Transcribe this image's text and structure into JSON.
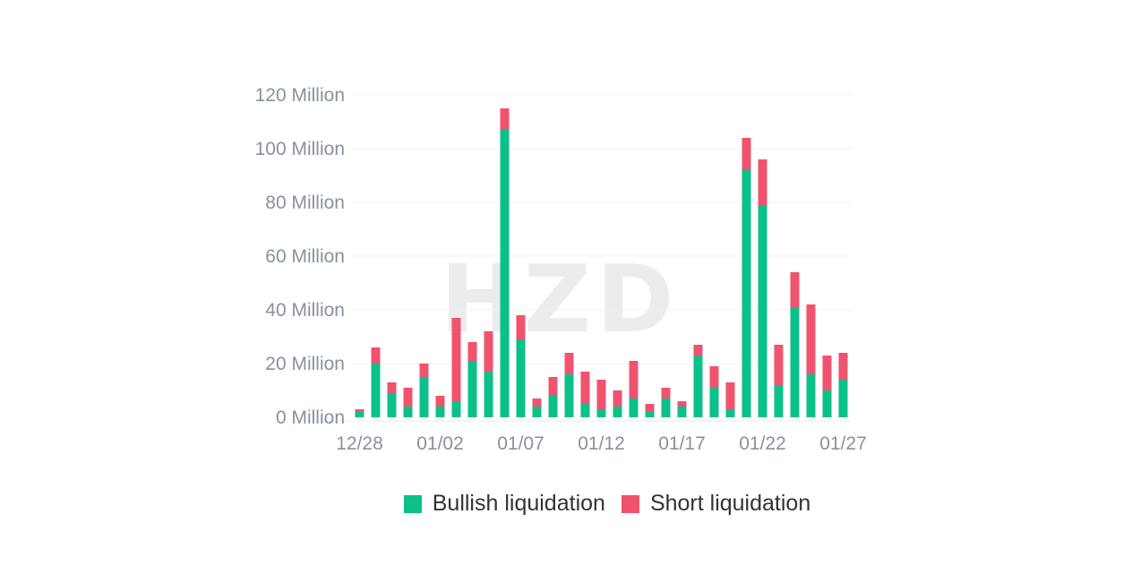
{
  "watermark": "HZD",
  "chart_data": {
    "type": "bar",
    "stacked": true,
    "title": "",
    "xlabel": "",
    "ylabel": "",
    "ylim": [
      0,
      120
    ],
    "y_unit": "Million",
    "y_ticks": [
      "0 Million",
      "20 Million",
      "40 Million",
      "60 Million",
      "80 Million",
      "100 Million",
      "120 Million"
    ],
    "y_tick_values": [
      0,
      20,
      40,
      60,
      80,
      100,
      120
    ],
    "x_tick_labels": [
      "12/28",
      "01/02",
      "01/07",
      "01/12",
      "01/17",
      "01/22",
      "01/27"
    ],
    "x_tick_indices": [
      0,
      5,
      10,
      15,
      20,
      25,
      30
    ],
    "categories": [
      "12/28",
      "12/29",
      "12/30",
      "12/31",
      "01/01",
      "01/02",
      "01/03",
      "01/04",
      "01/05",
      "01/06",
      "01/07",
      "01/08",
      "01/09",
      "01/10",
      "01/11",
      "01/12",
      "01/13",
      "01/14",
      "01/15",
      "01/16",
      "01/17",
      "01/18",
      "01/19",
      "01/20",
      "01/21",
      "01/22",
      "01/23",
      "01/24",
      "01/25",
      "01/26",
      "01/27"
    ],
    "grid": true,
    "legend_position": "bottom",
    "series": [
      {
        "name": "Bullish liquidation",
        "color": "#0bc08a",
        "values": [
          2,
          20,
          9,
          4,
          15,
          4,
          6,
          21,
          17,
          107,
          29,
          4,
          8,
          16,
          5,
          3,
          4,
          7,
          2,
          7,
          4,
          23,
          11,
          3,
          92,
          79,
          12,
          41,
          16,
          10,
          14
        ]
      },
      {
        "name": "Short liquidation",
        "color": "#f0536e",
        "values": [
          1,
          6,
          4,
          7,
          5,
          4,
          31,
          7,
          15,
          8,
          9,
          3,
          7,
          8,
          12,
          11,
          6,
          14,
          3,
          4,
          2,
          4,
          8,
          10,
          12,
          17,
          15,
          13,
          26,
          13,
          10
        ]
      }
    ]
  },
  "legend": {
    "bullish_label": "Bullish liquidation",
    "short_label": "Short liquidation"
  }
}
